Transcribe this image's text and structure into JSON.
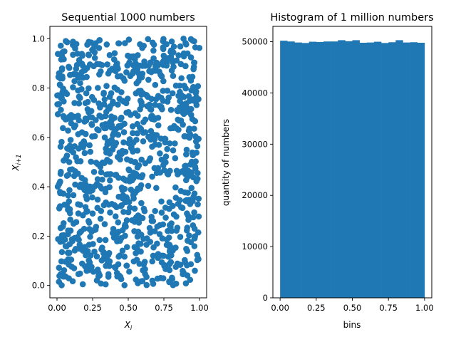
{
  "chart_data": [
    {
      "type": "scatter",
      "title": "Sequential 1000 numbers",
      "xlabel": "X_i",
      "ylabel": "X_{i+1}",
      "xlim": [
        -0.05,
        1.05
      ],
      "ylim": [
        -0.05,
        1.05
      ],
      "xticks": [
        0.0,
        0.25,
        0.5,
        0.75,
        1.0
      ],
      "xtick_labels": [
        "0.00",
        "0.25",
        "0.50",
        "0.75",
        "1.00"
      ],
      "yticks": [
        0.0,
        0.2,
        0.4,
        0.6,
        0.8,
        1.0
      ],
      "ytick_labels": [
        "0.0",
        "0.2",
        "0.4",
        "0.6",
        "0.8",
        "1.0"
      ],
      "color": "#1f77b4",
      "n_points": 1000,
      "distribution": "uniform random points covering [0,1] x [0,1]"
    },
    {
      "type": "bar",
      "title": "Histogram of 1 million numbers",
      "xlabel": "bins",
      "ylabel": "quantity of numbers",
      "xlim": [
        -0.05,
        1.05
      ],
      "ylim": [
        0,
        53000
      ],
      "xticks": [
        0.0,
        0.25,
        0.5,
        0.75,
        1.0
      ],
      "xtick_labels": [
        "0.00",
        "0.25",
        "0.50",
        "0.75",
        "1.00"
      ],
      "yticks": [
        0,
        10000,
        20000,
        30000,
        40000,
        50000
      ],
      "ytick_labels": [
        "0",
        "10000",
        "20000",
        "30000",
        "40000",
        "50000"
      ],
      "color": "#1f77b4",
      "bin_edges_start": 0.0,
      "bin_width": 0.05,
      "values": [
        50200,
        50050,
        49850,
        49750,
        50000,
        49950,
        50050,
        50050,
        50300,
        50100,
        50300,
        49800,
        49850,
        50000,
        49750,
        49900,
        50300,
        49850,
        49900,
        49800
      ]
    }
  ]
}
